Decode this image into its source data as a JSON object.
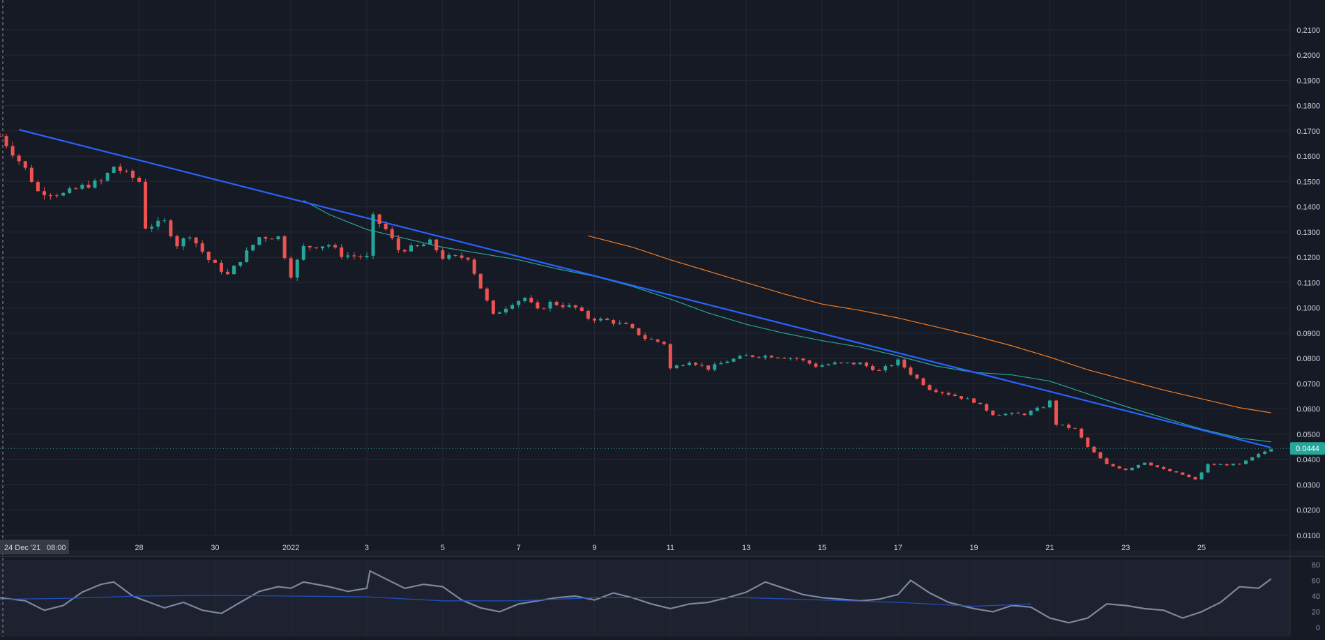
{
  "theme": {
    "background": "#161a25",
    "grid": "#242935",
    "axis_text": "#d1d4dc",
    "up_color": "#26a69a",
    "down_color": "#ef5350",
    "trendline_color": "#2962ff",
    "ma_fast_color": "#26a69a",
    "ma_slow_color": "#f57c1f",
    "rsi_color": "#7e879e",
    "rsi_ma_color": "#1f4fb8",
    "price_badge_color": "#26a69a"
  },
  "crosshair": {
    "date_label": "24 Dec '21",
    "time_label": "08:00"
  },
  "last_price": {
    "value": 0.0444,
    "label": "0.0444"
  },
  "rsi_panel": {
    "ticks": [
      "80",
      "60",
      "40",
      "20",
      "0"
    ]
  },
  "chart_data": [
    {
      "type": "candlestick",
      "title": "",
      "x_unit": "date",
      "x_start": "2021-12-24T08:00",
      "x_range": [
        "2021-12-24T08:00",
        "2022-01-27T08:00"
      ],
      "x_tick_labels": [
        {
          "label": "28",
          "date": "2021-12-28"
        },
        {
          "label": "30",
          "date": "2021-12-30"
        },
        {
          "label": "2022",
          "date": "2022-01-01"
        },
        {
          "label": "3",
          "date": "2022-01-03"
        },
        {
          "label": "5",
          "date": "2022-01-05"
        },
        {
          "label": "7",
          "date": "2022-01-07"
        },
        {
          "label": "9",
          "date": "2022-01-09"
        },
        {
          "label": "11",
          "date": "2022-01-11"
        },
        {
          "label": "13",
          "date": "2022-01-13"
        },
        {
          "label": "15",
          "date": "2022-01-15"
        },
        {
          "label": "17",
          "date": "2022-01-17"
        },
        {
          "label": "19",
          "date": "2022-01-19"
        },
        {
          "label": "21",
          "date": "2022-01-21"
        },
        {
          "label": "23",
          "date": "2022-01-23"
        },
        {
          "label": "25",
          "date": "2022-01-25"
        }
      ],
      "y_ticks": [
        "0.2100",
        "0.2000",
        "0.1900",
        "0.1800",
        "0.1700",
        "0.1600",
        "0.1500",
        "0.1400",
        "0.1300",
        "0.1200",
        "0.1100",
        "0.1000",
        "0.0900",
        "0.0800",
        "0.0700",
        "0.0600",
        "0.0500",
        "0.0400",
        "0.0300",
        "0.0200",
        "0.0100"
      ],
      "ylim": [
        0.0097,
        0.2127
      ],
      "grid": true,
      "close_path": [
        [
          "2021-12-24T08:00",
          0.168
        ],
        [
          "2021-12-25T00:00",
          0.155
        ],
        [
          "2021-12-25T08:00",
          0.146
        ],
        [
          "2021-12-26T00:00",
          0.145
        ],
        [
          "2021-12-26T12:00",
          0.148
        ],
        [
          "2021-12-27T00:00",
          0.15
        ],
        [
          "2021-12-27T08:00",
          0.156
        ],
        [
          "2021-12-28T00:00",
          0.15
        ],
        [
          "2021-12-28T04:00",
          0.132
        ],
        [
          "2021-12-28T16:00",
          0.134
        ],
        [
          "2021-12-29T00:00",
          0.125
        ],
        [
          "2021-12-29T08:00",
          0.129
        ],
        [
          "2021-12-29T20:00",
          0.119
        ],
        [
          "2021-12-30T08:00",
          0.113
        ],
        [
          "2021-12-30T20:00",
          0.122
        ],
        [
          "2021-12-31T04:00",
          0.128
        ],
        [
          "2021-12-31T16:00",
          0.128
        ],
        [
          "2022-01-01T00:00",
          0.113
        ],
        [
          "2022-01-01T08:00",
          0.124
        ],
        [
          "2022-01-02T00:00",
          0.125
        ],
        [
          "2022-01-02T08:00",
          0.121
        ],
        [
          "2022-01-03T00:00",
          0.12
        ],
        [
          "2022-01-03T02:00",
          0.137
        ],
        [
          "2022-01-03T12:00",
          0.131
        ],
        [
          "2022-01-03T20:00",
          0.123
        ],
        [
          "2022-01-04T08:00",
          0.124
        ],
        [
          "2022-01-04T16:00",
          0.126
        ],
        [
          "2022-01-05T00:00",
          0.12
        ],
        [
          "2022-01-05T16:00",
          0.12
        ],
        [
          "2022-01-06T00:00",
          0.108
        ],
        [
          "2022-01-06T08:00",
          0.097
        ],
        [
          "2022-01-06T20:00",
          0.102
        ],
        [
          "2022-01-07T04:00",
          0.104
        ],
        [
          "2022-01-07T12:00",
          0.099
        ],
        [
          "2022-01-07T20:00",
          0.102
        ],
        [
          "2022-01-08T12:00",
          0.1
        ],
        [
          "2022-01-08T20:00",
          0.096
        ],
        [
          "2022-01-09T08:00",
          0.095
        ],
        [
          "2022-01-09T20:00",
          0.093
        ],
        [
          "2022-01-10T08:00",
          0.088
        ],
        [
          "2022-01-10T20:00",
          0.086
        ],
        [
          "2022-01-11T00:00",
          0.076
        ],
        [
          "2022-01-11T12:00",
          0.079
        ],
        [
          "2022-01-12T00:00",
          0.076
        ],
        [
          "2022-01-12T12:00",
          0.079
        ],
        [
          "2022-01-13T00:00",
          0.081
        ],
        [
          "2022-01-13T16:00",
          0.081
        ],
        [
          "2022-01-14T08:00",
          0.08
        ],
        [
          "2022-01-14T20:00",
          0.077
        ],
        [
          "2022-01-15T08:00",
          0.078
        ],
        [
          "2022-01-16T00:00",
          0.078
        ],
        [
          "2022-01-16T12:00",
          0.075
        ],
        [
          "2022-01-17T00:00",
          0.079
        ],
        [
          "2022-01-17T08:00",
          0.074
        ],
        [
          "2022-01-17T20:00",
          0.068
        ],
        [
          "2022-01-18T08:00",
          0.066
        ],
        [
          "2022-01-19T00:00",
          0.063
        ],
        [
          "2022-01-19T12:00",
          0.058
        ],
        [
          "2022-01-20T08:00",
          0.058
        ],
        [
          "2022-01-20T20:00",
          0.061
        ],
        [
          "2022-01-21T00:00",
          0.063
        ],
        [
          "2022-01-21T04:00",
          0.054
        ],
        [
          "2022-01-21T16:00",
          0.052
        ],
        [
          "2022-01-22T00:00",
          0.045
        ],
        [
          "2022-01-22T12:00",
          0.038
        ],
        [
          "2022-01-23T00:00",
          0.036
        ],
        [
          "2022-01-23T12:00",
          0.039
        ],
        [
          "2022-01-24T00:00",
          0.036
        ],
        [
          "2022-01-24T12:00",
          0.034
        ],
        [
          "2022-01-24T20:00",
          0.032
        ],
        [
          "2022-01-25T04:00",
          0.038
        ],
        [
          "2022-01-25T12:00",
          0.038
        ],
        [
          "2022-01-26T00:00",
          0.038
        ],
        [
          "2022-01-26T12:00",
          0.042
        ],
        [
          "2022-01-26T20:00",
          0.0444
        ]
      ],
      "trendline": {
        "name": "",
        "points": [
          [
            "2021-12-24T20:00",
            0.1705
          ],
          [
            "2022-01-26T20:00",
            0.0447
          ]
        ]
      },
      "moving_averages": [
        {
          "name": "",
          "color_key": "ma_fast_color",
          "points": [
            [
              "2022-01-01T08:00",
              0.1425
            ],
            [
              "2022-01-02T00:00",
              0.137
            ],
            [
              "2022-01-03T00:00",
              0.131
            ],
            [
              "2022-01-04T00:00",
              0.1275
            ],
            [
              "2022-01-05T00:00",
              0.124
            ],
            [
              "2022-01-06T00:00",
              0.1215
            ],
            [
              "2022-01-07T00:00",
              0.119
            ],
            [
              "2022-01-08T00:00",
              0.1155
            ],
            [
              "2022-01-09T00:00",
              0.1125
            ],
            [
              "2022-01-10T00:00",
              0.1085
            ],
            [
              "2022-01-11T00:00",
              0.1035
            ],
            [
              "2022-01-12T00:00",
              0.098
            ],
            [
              "2022-01-13T00:00",
              0.0935
            ],
            [
              "2022-01-14T00:00",
              0.09
            ],
            [
              "2022-01-15T00:00",
              0.087
            ],
            [
              "2022-01-16T00:00",
              0.0845
            ],
            [
              "2022-01-17T00:00",
              0.081
            ],
            [
              "2022-01-18T00:00",
              0.077
            ],
            [
              "2022-01-19T00:00",
              0.0745
            ],
            [
              "2022-01-20T00:00",
              0.0735
            ],
            [
              "2022-01-21T00:00",
              0.071
            ],
            [
              "2022-01-22T00:00",
              0.066
            ],
            [
              "2022-01-23T00:00",
              0.061
            ],
            [
              "2022-01-24T00:00",
              0.0565
            ],
            [
              "2022-01-25T00:00",
              0.052
            ],
            [
              "2022-01-26T00:00",
              0.0485
            ],
            [
              "2022-01-26T20:00",
              0.047
            ]
          ]
        },
        {
          "name": "",
          "color_key": "ma_slow_color",
          "points": [
            [
              "2022-01-08T20:00",
              0.1285
            ],
            [
              "2022-01-10T00:00",
              0.124
            ],
            [
              "2022-01-11T00:00",
              0.119
            ],
            [
              "2022-01-12T00:00",
              0.1145
            ],
            [
              "2022-01-13T00:00",
              0.11
            ],
            [
              "2022-01-14T00:00",
              0.1055
            ],
            [
              "2022-01-15T00:00",
              0.1015
            ],
            [
              "2022-01-16T00:00",
              0.099
            ],
            [
              "2022-01-17T00:00",
              0.096
            ],
            [
              "2022-01-18T00:00",
              0.0925
            ],
            [
              "2022-01-19T00:00",
              0.089
            ],
            [
              "2022-01-20T00:00",
              0.085
            ],
            [
              "2022-01-21T00:00",
              0.0805
            ],
            [
              "2022-01-22T00:00",
              0.0755
            ],
            [
              "2022-01-23T00:00",
              0.0715
            ],
            [
              "2022-01-24T00:00",
              0.0675
            ],
            [
              "2022-01-25T00:00",
              0.064
            ],
            [
              "2022-01-26T00:00",
              0.0605
            ],
            [
              "2022-01-26T20:00",
              0.0585
            ]
          ]
        }
      ]
    },
    {
      "type": "line",
      "title": "",
      "ylim": [
        0,
        80
      ],
      "y_ticks": [
        "80",
        "60",
        "40",
        "20",
        "0"
      ],
      "series": [
        {
          "name": "",
          "color_key": "rsi_color",
          "points": [
            [
              "2021-12-24T08:00",
              38
            ],
            [
              "2021-12-25T00:00",
              34
            ],
            [
              "2021-12-25T12:00",
              22
            ],
            [
              "2021-12-26T00:00",
              28
            ],
            [
              "2021-12-26T12:00",
              45
            ],
            [
              "2021-12-27T00:00",
              55
            ],
            [
              "2021-12-27T08:00",
              58
            ],
            [
              "2021-12-27T20:00",
              40
            ],
            [
              "2021-12-28T04:00",
              34
            ],
            [
              "2021-12-28T16:00",
              25
            ],
            [
              "2021-12-29T04:00",
              32
            ],
            [
              "2021-12-29T16:00",
              22
            ],
            [
              "2021-12-30T04:00",
              18
            ],
            [
              "2021-12-30T16:00",
              32
            ],
            [
              "2021-12-31T04:00",
              46
            ],
            [
              "2021-12-31T16:00",
              52
            ],
            [
              "2022-01-01T00:00",
              50
            ],
            [
              "2022-01-01T08:00",
              58
            ],
            [
              "2022-01-02T00:00",
              52
            ],
            [
              "2022-01-02T12:00",
              46
            ],
            [
              "2022-01-03T00:00",
              50
            ],
            [
              "2022-01-03T02:00",
              72
            ],
            [
              "2022-01-03T12:00",
              62
            ],
            [
              "2022-01-04T00:00",
              50
            ],
            [
              "2022-01-04T12:00",
              55
            ],
            [
              "2022-01-05T00:00",
              52
            ],
            [
              "2022-01-05T12:00",
              35
            ],
            [
              "2022-01-06T00:00",
              25
            ],
            [
              "2022-01-06T12:00",
              20
            ],
            [
              "2022-01-07T00:00",
              30
            ],
            [
              "2022-01-07T12:00",
              34
            ],
            [
              "2022-01-08T00:00",
              38
            ],
            [
              "2022-01-08T12:00",
              40
            ],
            [
              "2022-01-09T00:00",
              35
            ],
            [
              "2022-01-09T12:00",
              44
            ],
            [
              "2022-01-10T00:00",
              38
            ],
            [
              "2022-01-10T12:00",
              30
            ],
            [
              "2022-01-11T00:00",
              24
            ],
            [
              "2022-01-11T12:00",
              30
            ],
            [
              "2022-01-12T00:00",
              32
            ],
            [
              "2022-01-12T12:00",
              38
            ],
            [
              "2022-01-13T00:00",
              45
            ],
            [
              "2022-01-13T12:00",
              58
            ],
            [
              "2022-01-14T00:00",
              50
            ],
            [
              "2022-01-14T12:00",
              42
            ],
            [
              "2022-01-15T00:00",
              38
            ],
            [
              "2022-01-15T12:00",
              36
            ],
            [
              "2022-01-16T00:00",
              34
            ],
            [
              "2022-01-16T12:00",
              36
            ],
            [
              "2022-01-17T00:00",
              42
            ],
            [
              "2022-01-17T08:00",
              60
            ],
            [
              "2022-01-17T20:00",
              44
            ],
            [
              "2022-01-18T08:00",
              32
            ],
            [
              "2022-01-19T00:00",
              24
            ],
            [
              "2022-01-19T12:00",
              20
            ],
            [
              "2022-01-20T00:00",
              28
            ],
            [
              "2022-01-20T12:00",
              26
            ],
            [
              "2022-01-21T00:00",
              12
            ],
            [
              "2022-01-21T12:00",
              6
            ],
            [
              "2022-01-22T00:00",
              12
            ],
            [
              "2022-01-22T12:00",
              30
            ],
            [
              "2022-01-23T00:00",
              28
            ],
            [
              "2022-01-23T12:00",
              24
            ],
            [
              "2022-01-24T00:00",
              22
            ],
            [
              "2022-01-24T12:00",
              12
            ],
            [
              "2022-01-25T00:00",
              20
            ],
            [
              "2022-01-25T12:00",
              32
            ],
            [
              "2022-01-26T00:00",
              52
            ],
            [
              "2022-01-26T12:00",
              50
            ],
            [
              "2022-01-26T20:00",
              62
            ]
          ]
        },
        {
          "name": "",
          "color_key": "rsi_ma_color",
          "points": [
            [
              "2021-12-24T08:00",
              36
            ],
            [
              "2021-12-26T00:00",
              37
            ],
            [
              "2021-12-28T00:00",
              40
            ],
            [
              "2021-12-30T00:00",
              41
            ],
            [
              "2022-01-01T00:00",
              40
            ],
            [
              "2022-01-03T00:00",
              39
            ],
            [
              "2022-01-05T00:00",
              34
            ],
            [
              "2022-01-07T00:00",
              34
            ],
            [
              "2022-01-09T00:00",
              38
            ],
            [
              "2022-01-11T00:00",
              38
            ],
            [
              "2022-01-13T00:00",
              38
            ],
            [
              "2022-01-15T00:00",
              35
            ],
            [
              "2022-01-17T00:00",
              32
            ],
            [
              "2022-01-19T00:00",
              27
            ],
            [
              "2022-01-20T12:00",
              30
            ]
          ]
        }
      ]
    }
  ]
}
